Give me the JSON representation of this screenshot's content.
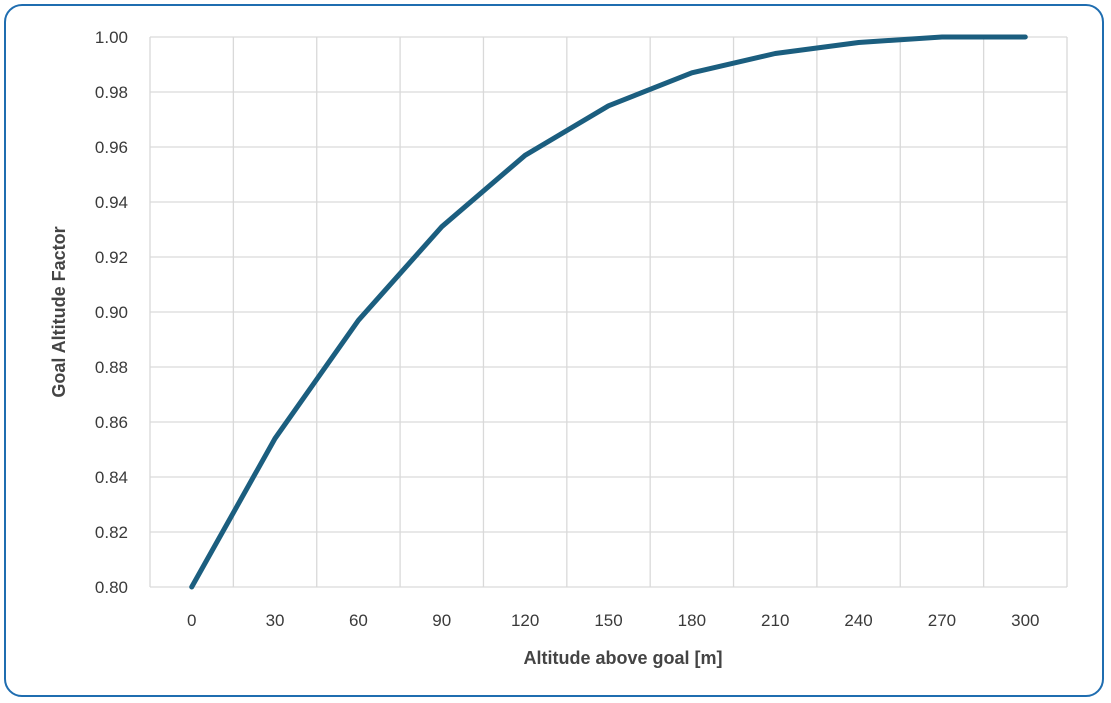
{
  "chart_data": {
    "type": "line",
    "xlabel": "Altitude above goal [m]",
    "ylabel": "Goal Altitude Factor",
    "xlim": [
      0,
      300
    ],
    "ylim": [
      0.8,
      1.0
    ],
    "x_ticks": [
      "0",
      "30",
      "60",
      "90",
      "120",
      "150",
      "180",
      "210",
      "240",
      "270",
      "300"
    ],
    "y_ticks": [
      "0.80",
      "0.82",
      "0.84",
      "0.86",
      "0.88",
      "0.90",
      "0.92",
      "0.94",
      "0.96",
      "0.98",
      "1.00"
    ],
    "grid": true,
    "series": [
      {
        "color": "#1b5e7f",
        "x": [
          0,
          30,
          60,
          90,
          120,
          150,
          180,
          210,
          240,
          270,
          300
        ],
        "y": [
          0.8,
          0.854,
          0.897,
          0.931,
          0.957,
          0.975,
          0.987,
          0.994,
          0.998,
          1.0,
          1.0
        ]
      }
    ]
  },
  "colors": {
    "frame": "#1f6db0",
    "line": "#1b5e7f",
    "grid": "#d9d9d9"
  }
}
